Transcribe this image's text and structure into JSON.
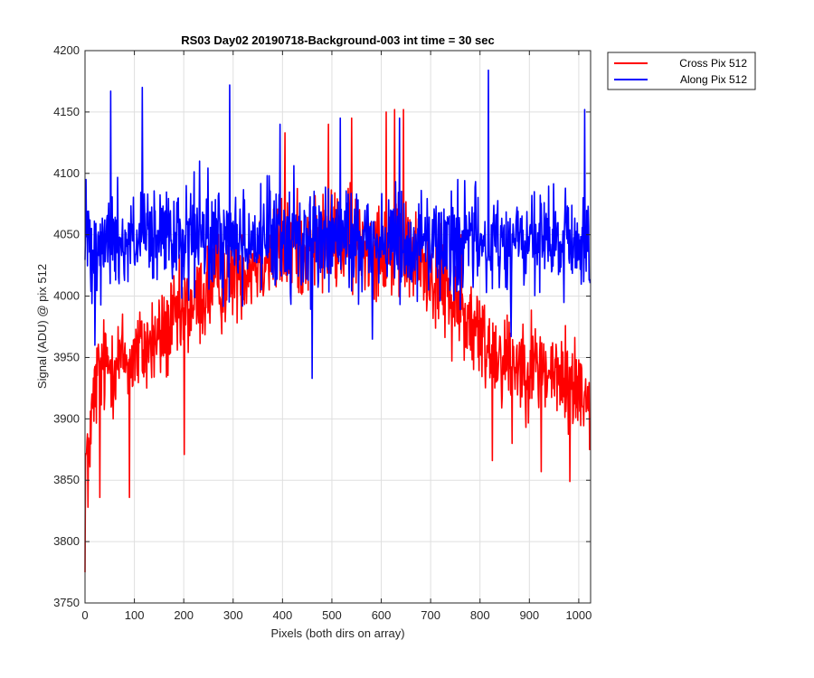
{
  "chart_data": {
    "type": "line",
    "title": "RS03 Day02 20190718-Background-003 int time = 30 sec",
    "xlabel": "Pixels (both dirs on array)",
    "ylabel": "Signal (ADU) @ pix 512",
    "xlim": [
      0,
      1024
    ],
    "ylim": [
      3750,
      4200
    ],
    "xticks": [
      0,
      100,
      200,
      300,
      400,
      500,
      600,
      700,
      800,
      900,
      1000
    ],
    "yticks": [
      3750,
      3800,
      3850,
      3900,
      3950,
      4000,
      4050,
      4100,
      4150,
      4200
    ],
    "grid": true,
    "legend_position": "outside-top-right",
    "n_points": 1024,
    "series": [
      {
        "name": "Cross Pix 512",
        "color": "#ff0000",
        "trend": [
          [
            0,
            3860
          ],
          [
            25,
            3935
          ],
          [
            50,
            3945
          ],
          [
            100,
            3952
          ],
          [
            150,
            3965
          ],
          [
            200,
            3985
          ],
          [
            250,
            4005
          ],
          [
            300,
            4020
          ],
          [
            350,
            4030
          ],
          [
            400,
            4038
          ],
          [
            450,
            4042
          ],
          [
            500,
            4045
          ],
          [
            550,
            4045
          ],
          [
            600,
            4042
          ],
          [
            650,
            4035
          ],
          [
            700,
            4020
          ],
          [
            750,
            3995
          ],
          [
            800,
            3965
          ],
          [
            850,
            3950
          ],
          [
            900,
            3945
          ],
          [
            950,
            3935
          ],
          [
            1000,
            3925
          ],
          [
            1024,
            3920
          ]
        ],
        "noise_amplitude": 38,
        "extremes": [
          [
            0,
            3775
          ],
          [
            6,
            3828
          ],
          [
            30,
            3836
          ],
          [
            90,
            3836
          ],
          [
            201,
            3871
          ],
          [
            405,
            4133
          ],
          [
            493,
            4140
          ],
          [
            540,
            4145
          ],
          [
            610,
            4150
          ],
          [
            627,
            4152
          ],
          [
            645,
            4152
          ],
          [
            762,
            4050
          ],
          [
            825,
            3866
          ],
          [
            865,
            3880
          ],
          [
            924,
            3857
          ],
          [
            982,
            3849
          ],
          [
            1022,
            3875
          ]
        ]
      },
      {
        "name": "Along Pix 512",
        "color": "#0000ff",
        "trend": [
          [
            0,
            4045
          ],
          [
            100,
            4045
          ],
          [
            200,
            4045
          ],
          [
            300,
            4046
          ],
          [
            400,
            4047
          ],
          [
            500,
            4046
          ],
          [
            600,
            4045
          ],
          [
            700,
            4044
          ],
          [
            800,
            4043
          ],
          [
            900,
            4043
          ],
          [
            1000,
            4042
          ],
          [
            1024,
            4040
          ]
        ],
        "noise_amplitude": 40,
        "extremes": [
          [
            2,
            4095
          ],
          [
            20,
            3960
          ],
          [
            52,
            4167
          ],
          [
            116,
            4170
          ],
          [
            232,
            4110
          ],
          [
            293,
            4172
          ],
          [
            395,
            4140
          ],
          [
            460,
            3933
          ],
          [
            517,
            4145
          ],
          [
            582,
            3965
          ],
          [
            637,
            4145
          ],
          [
            755,
            4095
          ],
          [
            817,
            4184
          ],
          [
            863,
            3967
          ],
          [
            1012,
            4152
          ]
        ]
      }
    ]
  }
}
